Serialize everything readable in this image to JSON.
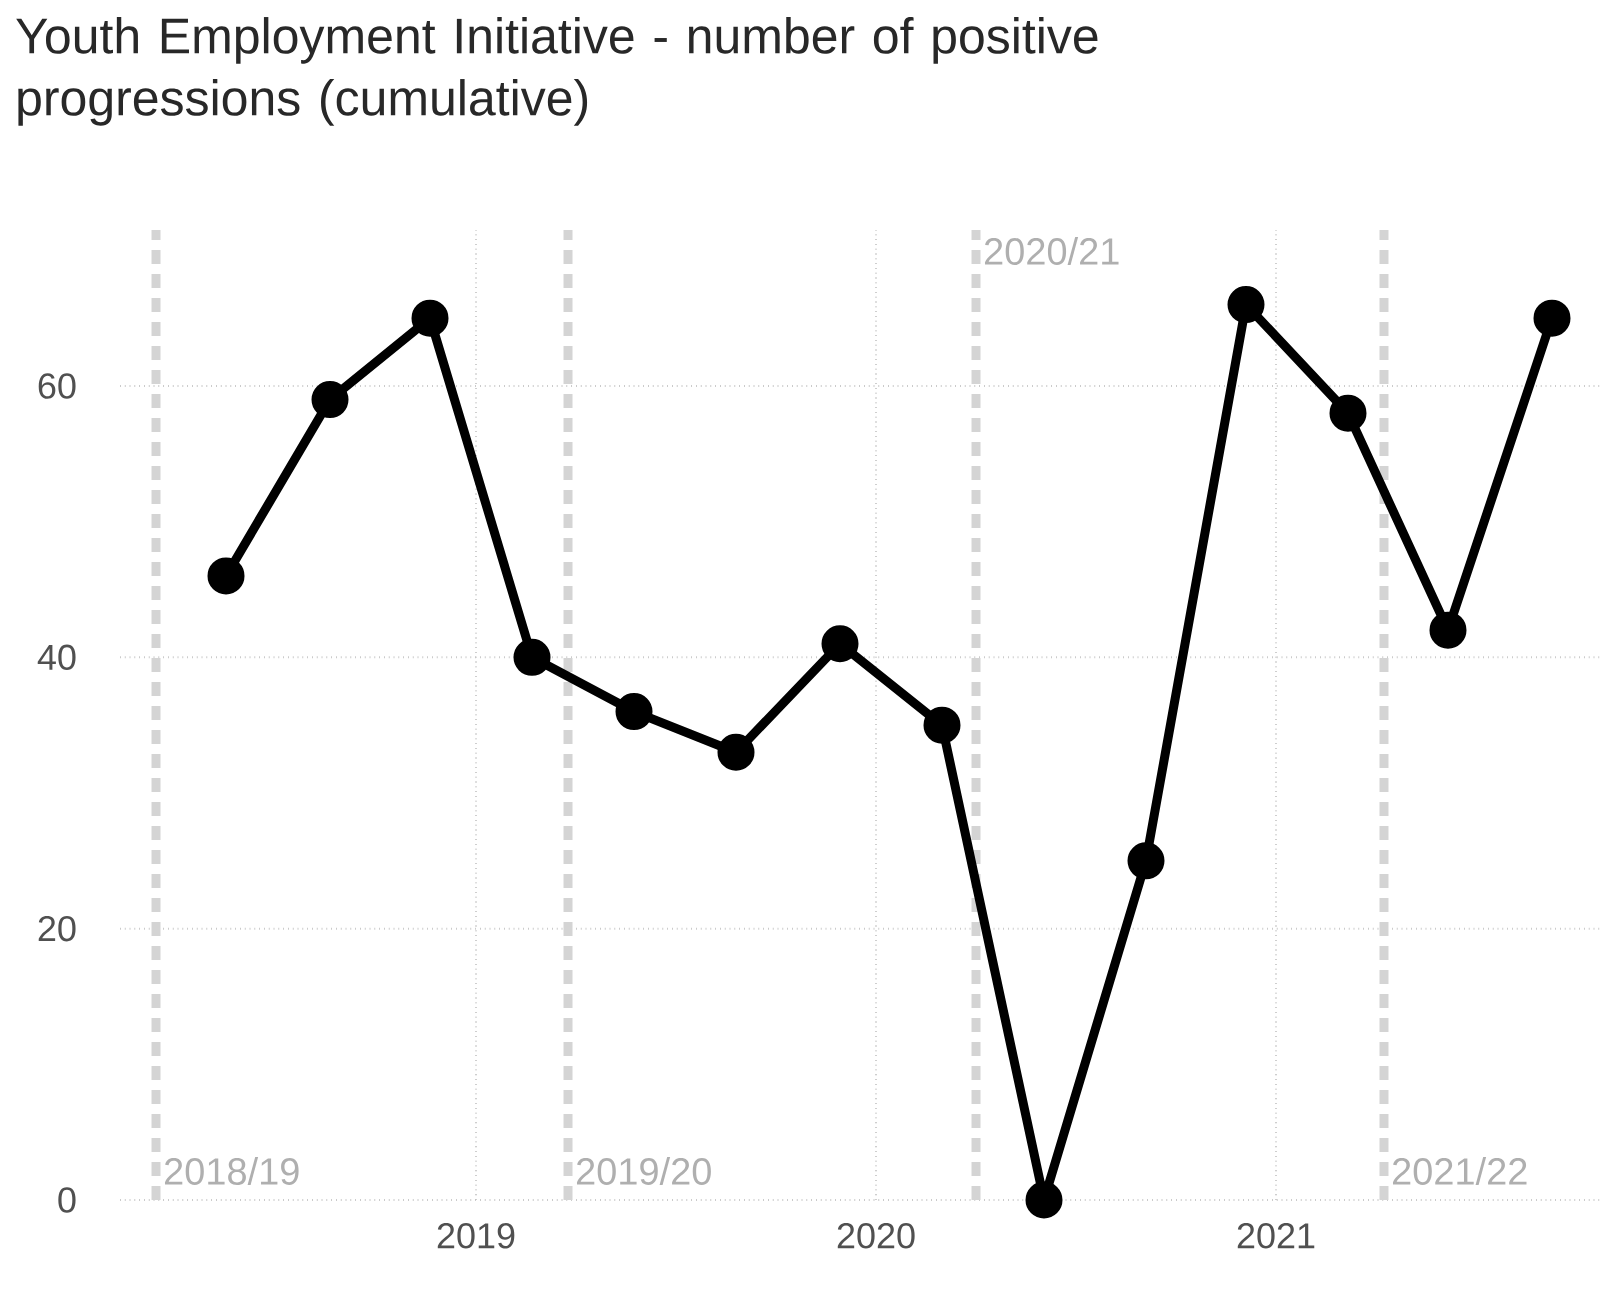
{
  "chart_data": {
    "type": "line",
    "title": "Youth Employment Initiative - number of positive progressions (cumulative)",
    "x": [
      2018.375,
      2018.635,
      2018.885,
      2019.14,
      2019.395,
      2019.65,
      2019.91,
      2020.165,
      2020.42,
      2020.675,
      2020.925,
      2021.18,
      2021.43,
      2021.69
    ],
    "series": [
      {
        "color": "#000000",
        "values": [
          46,
          59,
          65,
          40,
          36,
          33,
          41,
          35,
          0,
          25,
          66,
          58,
          42,
          65
        ]
      }
    ],
    "xlim": [
      2018.11,
      2021.81
    ],
    "xticks": [
      2019,
      2020,
      2021
    ],
    "ylim": [
      0,
      71.5
    ],
    "yticks": [
      0,
      20,
      40,
      60
    ],
    "grid": true,
    "marker": "circle",
    "line_style": "solid",
    "ref_lines": [
      {
        "axis": "x",
        "value": 2018.2,
        "label": "2018/19",
        "color": "#d4d4d4",
        "line_style": "dashed"
      },
      {
        "axis": "x",
        "value": 2019.23,
        "label": "2019/20",
        "color": "#d4d4d4",
        "line_style": "dashed"
      },
      {
        "axis": "x",
        "value": 2020.25,
        "label": "2020/21",
        "color": "#d4d4d4",
        "line_style": "dashed"
      },
      {
        "axis": "x",
        "value": 2021.27,
        "label": "2021/22",
        "color": "#d4d4d4",
        "line_style": "dashed"
      }
    ]
  }
}
